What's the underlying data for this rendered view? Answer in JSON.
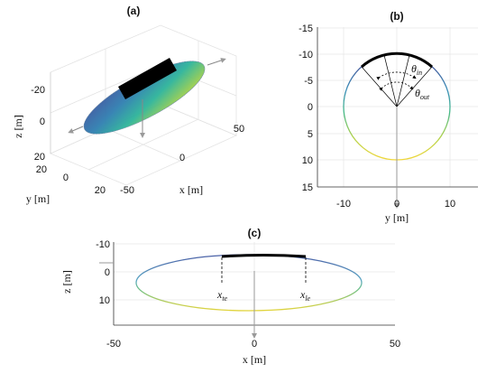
{
  "panels": {
    "a": {
      "title": "(a)",
      "zlabel": "z [m]",
      "ylabel": "y [m]",
      "xlabel": "x [m]",
      "z_ticks": [
        "-20",
        "0",
        "20"
      ],
      "y_ticks": [
        "20",
        "0",
        "20"
      ],
      "x_ticks": [
        "-50",
        "0",
        "50"
      ]
    },
    "b": {
      "title": "(b)",
      "xlabel": "y [m]",
      "ylabel": "",
      "y_ticks": [
        "-15",
        "-10",
        "-5",
        "0",
        "5",
        "10",
        "15"
      ],
      "x_ticks": [
        "-10",
        "0",
        "10"
      ],
      "theta_in": "θ",
      "theta_in_sub": "in",
      "theta_out": "θ",
      "theta_out_sub": "out"
    },
    "c": {
      "title": "(c)",
      "xlabel": "x [m]",
      "ylabel": "z [m]",
      "y_ticks": [
        "-10",
        "0",
        "10"
      ],
      "x_ticks": [
        "-50",
        "0",
        "50"
      ],
      "x_te": "x",
      "x_te_sub": "te",
      "x_le": "x",
      "x_le_sub": "le"
    }
  },
  "colors": {
    "grid": "#e6e6e6",
    "axis": "#262626",
    "arrow": "#9a9a9a",
    "wing": "#000000",
    "palette_top": "#3b4d9a",
    "palette_mid": "#2fa8a0",
    "palette_bottom": "#e4d53a"
  }
}
